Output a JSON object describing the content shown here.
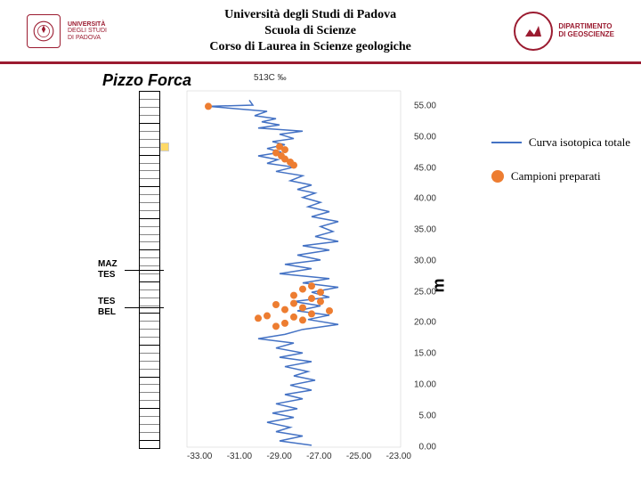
{
  "header": {
    "uni_line1": "UNIVERSITÀ",
    "uni_line2": "DEGLI STUDI",
    "uni_line3": "DI PADOVA",
    "title_line1": "Università degli Studi di Padova",
    "title_line2": "Scuola di Scienze",
    "title_line3": "Corso di Laurea in Scienze geologiche",
    "dept_line1": "DIPARTIMENTO",
    "dept_line2": "DI GEOSCIENZE"
  },
  "chart": {
    "section_name": "Pizzo Forca",
    "x_axis_label": "513C ‰",
    "y_unit_label": "m",
    "y_range": [
      0,
      57.5
    ],
    "x_range": [
      -34,
      -22
    ],
    "y_ticks": [
      55.0,
      50.0,
      45.0,
      40.0,
      35.0,
      30.0,
      25.0,
      20.0,
      15.0,
      10.0,
      5.0,
      0.0
    ],
    "x_ticks": [
      -33.0,
      -31.0,
      -29.0,
      -27.0,
      -25.0,
      -23.0
    ],
    "boundaries": [
      {
        "upper": "MAZ",
        "lower": "TES",
        "y": 28.5
      },
      {
        "upper": "TES",
        "lower": "BEL",
        "y": 22.5
      }
    ],
    "yellow_marker_y": 48.5,
    "line_color": "#4472c4",
    "sample_color": "#ed7d31",
    "curve": [
      {
        "x": -30.5,
        "y": 56.0
      },
      {
        "x": -30.3,
        "y": 55.2
      },
      {
        "x": -32.8,
        "y": 55.0
      },
      {
        "x": -29.5,
        "y": 54.2
      },
      {
        "x": -30.2,
        "y": 53.5
      },
      {
        "x": -29.0,
        "y": 53.0
      },
      {
        "x": -29.8,
        "y": 52.5
      },
      {
        "x": -28.8,
        "y": 52.0
      },
      {
        "x": -30.0,
        "y": 51.5
      },
      {
        "x": -27.5,
        "y": 51.0
      },
      {
        "x": -28.8,
        "y": 50.5
      },
      {
        "x": -28.0,
        "y": 49.8
      },
      {
        "x": -29.2,
        "y": 49.3
      },
      {
        "x": -28.5,
        "y": 48.8
      },
      {
        "x": -29.5,
        "y": 48.2
      },
      {
        "x": -28.7,
        "y": 47.6
      },
      {
        "x": -30.0,
        "y": 47.0
      },
      {
        "x": -28.9,
        "y": 46.4
      },
      {
        "x": -29.5,
        "y": 45.8
      },
      {
        "x": -28.0,
        "y": 45.2
      },
      {
        "x": -29.0,
        "y": 44.5
      },
      {
        "x": -27.5,
        "y": 43.8
      },
      {
        "x": -28.2,
        "y": 43.0
      },
      {
        "x": -27.0,
        "y": 42.3
      },
      {
        "x": -27.8,
        "y": 41.6
      },
      {
        "x": -26.8,
        "y": 41.0
      },
      {
        "x": -27.5,
        "y": 40.3
      },
      {
        "x": -26.5,
        "y": 39.5
      },
      {
        "x": -27.2,
        "y": 38.8
      },
      {
        "x": -26.0,
        "y": 38.0
      },
      {
        "x": -27.0,
        "y": 37.2
      },
      {
        "x": -25.5,
        "y": 36.4
      },
      {
        "x": -26.5,
        "y": 35.6
      },
      {
        "x": -25.8,
        "y": 34.8
      },
      {
        "x": -26.8,
        "y": 34.0
      },
      {
        "x": -25.5,
        "y": 33.2
      },
      {
        "x": -27.5,
        "y": 32.5
      },
      {
        "x": -26.0,
        "y": 31.8
      },
      {
        "x": -27.8,
        "y": 31.0
      },
      {
        "x": -26.5,
        "y": 30.2
      },
      {
        "x": -28.5,
        "y": 29.5
      },
      {
        "x": -27.0,
        "y": 28.8
      },
      {
        "x": -28.8,
        "y": 28.0
      },
      {
        "x": -26.0,
        "y": 27.2
      },
      {
        "x": -27.5,
        "y": 26.5
      },
      {
        "x": -25.5,
        "y": 25.8
      },
      {
        "x": -27.0,
        "y": 25.0
      },
      {
        "x": -26.0,
        "y": 24.2
      },
      {
        "x": -28.0,
        "y": 23.5
      },
      {
        "x": -26.5,
        "y": 22.8
      },
      {
        "x": -27.8,
        "y": 22.0
      },
      {
        "x": -26.0,
        "y": 21.3
      },
      {
        "x": -27.2,
        "y": 20.6
      },
      {
        "x": -25.5,
        "y": 19.8
      },
      {
        "x": -27.5,
        "y": 19.0
      },
      {
        "x": -28.5,
        "y": 18.2
      },
      {
        "x": -30.0,
        "y": 17.5
      },
      {
        "x": -28.0,
        "y": 16.8
      },
      {
        "x": -29.0,
        "y": 16.0
      },
      {
        "x": -27.5,
        "y": 15.2
      },
      {
        "x": -28.8,
        "y": 14.5
      },
      {
        "x": -27.0,
        "y": 13.8
      },
      {
        "x": -28.5,
        "y": 13.0
      },
      {
        "x": -27.2,
        "y": 12.2
      },
      {
        "x": -28.0,
        "y": 11.5
      },
      {
        "x": -26.8,
        "y": 10.8
      },
      {
        "x": -28.2,
        "y": 10.0
      },
      {
        "x": -27.0,
        "y": 9.2
      },
      {
        "x": -28.5,
        "y": 8.5
      },
      {
        "x": -27.5,
        "y": 7.8
      },
      {
        "x": -29.0,
        "y": 7.0
      },
      {
        "x": -27.8,
        "y": 6.2
      },
      {
        "x": -29.2,
        "y": 5.5
      },
      {
        "x": -28.0,
        "y": 4.8
      },
      {
        "x": -29.5,
        "y": 4.0
      },
      {
        "x": -28.2,
        "y": 3.2
      },
      {
        "x": -29.0,
        "y": 2.5
      },
      {
        "x": -27.5,
        "y": 1.8
      },
      {
        "x": -28.8,
        "y": 1.0
      },
      {
        "x": -27.0,
        "y": 0.3
      }
    ],
    "samples": [
      {
        "x": -32.8,
        "y": 55.0
      },
      {
        "x": -28.8,
        "y": 48.5
      },
      {
        "x": -28.5,
        "y": 48.0
      },
      {
        "x": -29.0,
        "y": 47.5
      },
      {
        "x": -28.7,
        "y": 47.0
      },
      {
        "x": -28.5,
        "y": 46.5
      },
      {
        "x": -28.2,
        "y": 46.0
      },
      {
        "x": -28.0,
        "y": 45.5
      },
      {
        "x": -27.0,
        "y": 26.0
      },
      {
        "x": -27.5,
        "y": 25.5
      },
      {
        "x": -26.5,
        "y": 25.0
      },
      {
        "x": -28.0,
        "y": 24.5
      },
      {
        "x": -27.0,
        "y": 24.0
      },
      {
        "x": -26.5,
        "y": 23.5
      },
      {
        "x": -28.0,
        "y": 23.2
      },
      {
        "x": -29.0,
        "y": 23.0
      },
      {
        "x": -27.5,
        "y": 22.5
      },
      {
        "x": -28.5,
        "y": 22.2
      },
      {
        "x": -26.0,
        "y": 22.0
      },
      {
        "x": -27.0,
        "y": 21.5
      },
      {
        "x": -29.5,
        "y": 21.2
      },
      {
        "x": -28.0,
        "y": 21.0
      },
      {
        "x": -30.0,
        "y": 20.8
      },
      {
        "x": -27.5,
        "y": 20.5
      },
      {
        "x": -28.5,
        "y": 20.0
      },
      {
        "x": -29.0,
        "y": 19.5
      }
    ],
    "strat_segments": 45
  },
  "legend": {
    "item1": "Curva isotopica totale",
    "item2": "Campioni preparati"
  }
}
